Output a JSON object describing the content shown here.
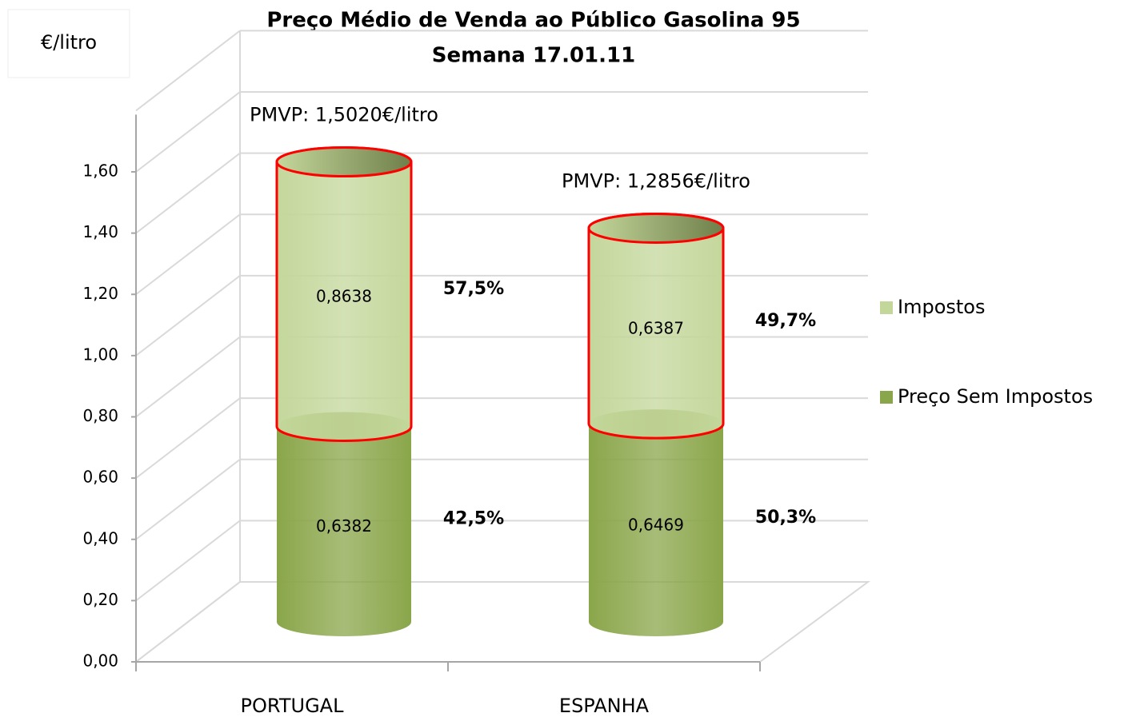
{
  "chart_data": {
    "type": "bar",
    "stacked": true,
    "three_d": true,
    "title": "Preço Médio de Venda ao Público  Gasolina 95",
    "subtitle": "Semana 17.01.11",
    "y_label": "€/litro",
    "categories": [
      "PORTUGAL",
      "ESPANHA"
    ],
    "series": [
      {
        "name": "Preço Sem Impostos",
        "color": "#8aa64a",
        "values": [
          0.6382,
          0.6469
        ],
        "value_labels": [
          "0,6382",
          "0,6469"
        ],
        "shares": [
          42.5,
          50.3
        ],
        "share_labels": [
          "42,5%",
          "50,3%"
        ]
      },
      {
        "name": "Impostos",
        "color": "#c4d79b",
        "edgecolor": "#ff0000",
        "values": [
          0.8638,
          0.6387
        ],
        "value_labels": [
          "0,8638",
          "0,6387"
        ],
        "shares": [
          57.5,
          49.7
        ],
        "share_labels": [
          "57,5%",
          "49,7%"
        ]
      }
    ],
    "annotations": [
      "PMVP: 1,5020€/litro",
      "PMVP: 1,2856€/litro"
    ],
    "ylim": [
      0,
      1.8
    ],
    "yticks": [
      {
        "value": 0,
        "label": "0,00"
      },
      {
        "value": 0.2,
        "label": "0,20"
      },
      {
        "value": 0.4,
        "label": "0,40"
      },
      {
        "value": 0.6,
        "label": "0,60"
      },
      {
        "value": 0.8,
        "label": "0,80"
      },
      {
        "value": 1.0,
        "label": "1,00"
      },
      {
        "value": 1.2,
        "label": "1,20"
      },
      {
        "value": 1.4,
        "label": "1,40"
      },
      {
        "value": 1.6,
        "label": "1,60"
      }
    ],
    "grid": true,
    "legend": "right"
  }
}
